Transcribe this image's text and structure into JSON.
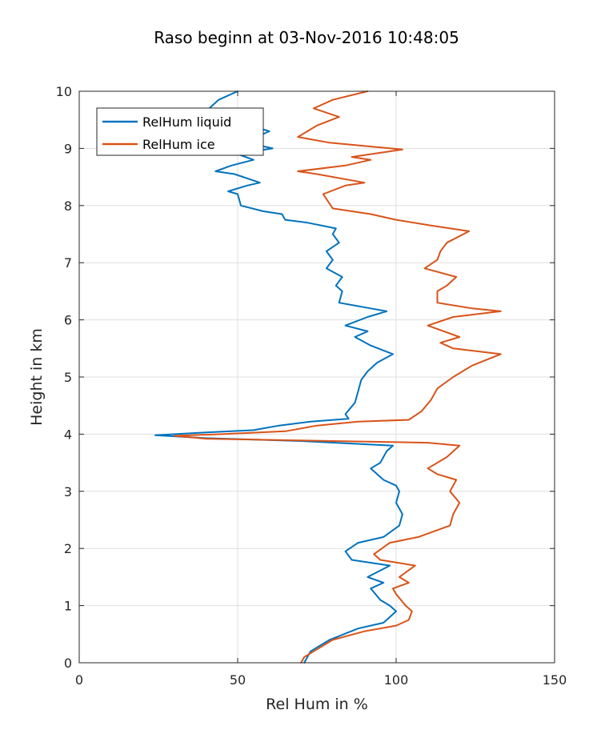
{
  "chart_data": {
    "type": "line",
    "title": "Raso beginn at 03-Nov-2016 10:48:05",
    "xlabel": "Rel Hum in %",
    "ylabel": "Height in km",
    "xlim": [
      0,
      150
    ],
    "ylim": [
      0,
      10
    ],
    "xticks": [
      0,
      50,
      100,
      150
    ],
    "yticks": [
      0,
      1,
      2,
      3,
      4,
      5,
      6,
      7,
      8,
      9,
      10
    ],
    "grid": true,
    "legend_position": "top-left",
    "series": [
      {
        "name": "RelHum liquid",
        "color": "#0072BD",
        "points": [
          [
            71,
            0
          ],
          [
            73,
            0.2
          ],
          [
            79,
            0.4
          ],
          [
            88,
            0.6
          ],
          [
            96,
            0.7
          ],
          [
            100,
            0.9
          ],
          [
            98,
            1.0
          ],
          [
            95,
            1.1
          ],
          [
            92,
            1.3
          ],
          [
            96,
            1.4
          ],
          [
            91,
            1.5
          ],
          [
            98,
            1.7
          ],
          [
            86,
            1.8
          ],
          [
            84,
            1.95
          ],
          [
            88,
            2.1
          ],
          [
            96,
            2.2
          ],
          [
            101,
            2.4
          ],
          [
            102,
            2.6
          ],
          [
            100,
            2.8
          ],
          [
            101,
            3.0
          ],
          [
            100,
            3.1
          ],
          [
            96,
            3.2
          ],
          [
            92,
            3.4
          ],
          [
            95,
            3.5
          ],
          [
            97,
            3.7
          ],
          [
            99,
            3.8
          ],
          [
            70,
            3.88
          ],
          [
            40,
            3.93
          ],
          [
            24,
            3.98
          ],
          [
            40,
            4.03
          ],
          [
            55,
            4.07
          ],
          [
            63,
            4.15
          ],
          [
            73,
            4.22
          ],
          [
            85,
            4.27
          ],
          [
            84,
            4.35
          ],
          [
            87,
            4.55
          ],
          [
            88,
            4.75
          ],
          [
            89,
            4.95
          ],
          [
            91,
            5.1
          ],
          [
            94,
            5.25
          ],
          [
            99,
            5.4
          ],
          [
            92,
            5.55
          ],
          [
            87,
            5.7
          ],
          [
            91,
            5.8
          ],
          [
            84,
            5.9
          ],
          [
            91,
            6.05
          ],
          [
            97,
            6.15
          ],
          [
            92,
            6.2
          ],
          [
            82,
            6.3
          ],
          [
            83,
            6.5
          ],
          [
            81,
            6.6
          ],
          [
            83,
            6.75
          ],
          [
            78,
            6.9
          ],
          [
            80,
            7.05
          ],
          [
            78,
            7.2
          ],
          [
            82,
            7.35
          ],
          [
            80,
            7.5
          ],
          [
            81,
            7.6
          ],
          [
            72,
            7.7
          ],
          [
            65,
            7.75
          ],
          [
            64,
            7.85
          ],
          [
            58,
            7.9
          ],
          [
            51,
            8.0
          ],
          [
            50,
            8.2
          ],
          [
            47,
            8.25
          ],
          [
            53,
            8.35
          ],
          [
            57,
            8.4
          ],
          [
            49,
            8.55
          ],
          [
            43,
            8.6
          ],
          [
            48,
            8.7
          ],
          [
            55,
            8.8
          ],
          [
            50,
            8.9
          ],
          [
            61,
            9.0
          ],
          [
            53,
            9.1
          ],
          [
            56,
            9.2
          ],
          [
            60,
            9.3
          ],
          [
            54,
            9.4
          ],
          [
            46,
            9.55
          ],
          [
            41,
            9.7
          ],
          [
            44,
            9.85
          ],
          [
            50,
            10.0
          ]
        ]
      },
      {
        "name": "RelHum ice",
        "color": "#D95319",
        "points": [
          [
            70,
            0
          ],
          [
            71,
            0.1
          ],
          [
            74,
            0.2
          ],
          [
            80,
            0.4
          ],
          [
            90,
            0.55
          ],
          [
            100,
            0.65
          ],
          [
            104,
            0.75
          ],
          [
            105,
            0.9
          ],
          [
            103,
            1.0
          ],
          [
            100,
            1.2
          ],
          [
            99,
            1.3
          ],
          [
            104,
            1.4
          ],
          [
            101,
            1.5
          ],
          [
            106,
            1.7
          ],
          [
            95,
            1.8
          ],
          [
            93,
            1.9
          ],
          [
            98,
            2.1
          ],
          [
            107,
            2.2
          ],
          [
            117,
            2.4
          ],
          [
            118,
            2.6
          ],
          [
            120,
            2.8
          ],
          [
            117,
            3.0
          ],
          [
            119,
            3.2
          ],
          [
            113,
            3.3
          ],
          [
            110,
            3.4
          ],
          [
            116,
            3.6
          ],
          [
            120,
            3.8
          ],
          [
            110,
            3.85
          ],
          [
            80,
            3.88
          ],
          [
            40,
            3.92
          ],
          [
            30,
            3.97
          ],
          [
            45,
            4.0
          ],
          [
            65,
            4.05
          ],
          [
            75,
            4.15
          ],
          [
            88,
            4.22
          ],
          [
            104,
            4.25
          ],
          [
            108,
            4.4
          ],
          [
            111,
            4.6
          ],
          [
            113,
            4.8
          ],
          [
            118,
            5.0
          ],
          [
            124,
            5.2
          ],
          [
            133,
            5.4
          ],
          [
            118,
            5.5
          ],
          [
            114,
            5.6
          ],
          [
            120,
            5.7
          ],
          [
            110,
            5.9
          ],
          [
            118,
            6.05
          ],
          [
            133,
            6.15
          ],
          [
            124,
            6.2
          ],
          [
            113,
            6.3
          ],
          [
            113,
            6.5
          ],
          [
            116,
            6.6
          ],
          [
            119,
            6.75
          ],
          [
            109,
            6.9
          ],
          [
            113,
            7.05
          ],
          [
            114,
            7.2
          ],
          [
            116,
            7.35
          ],
          [
            123,
            7.55
          ],
          [
            111,
            7.65
          ],
          [
            100,
            7.75
          ],
          [
            92,
            7.85
          ],
          [
            80,
            7.95
          ],
          [
            77,
            8.2
          ],
          [
            84,
            8.35
          ],
          [
            90,
            8.4
          ],
          [
            75,
            8.55
          ],
          [
            69,
            8.6
          ],
          [
            84,
            8.7
          ],
          [
            92,
            8.8
          ],
          [
            86,
            8.85
          ],
          [
            102,
            8.98
          ],
          [
            79,
            9.1
          ],
          [
            69,
            9.2
          ],
          [
            72,
            9.3
          ],
          [
            75,
            9.4
          ],
          [
            82,
            9.55
          ],
          [
            74,
            9.7
          ],
          [
            80,
            9.85
          ],
          [
            91,
            10.0
          ]
        ]
      }
    ]
  }
}
